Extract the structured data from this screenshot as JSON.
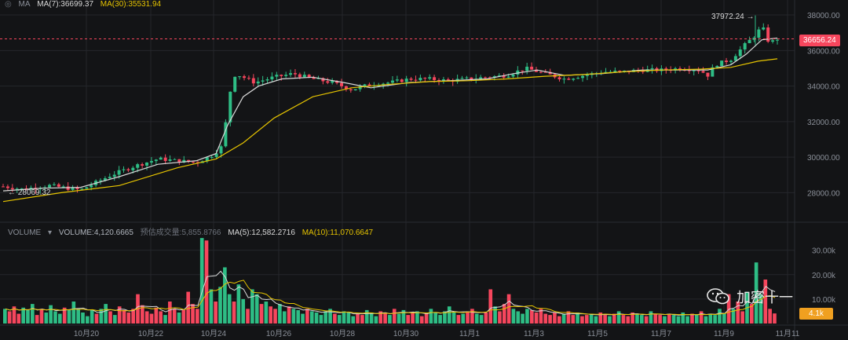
{
  "price_legend": {
    "prefix": "MA",
    "ma7_label": "MA(7):36699.37",
    "ma30_label": "MA(30):35531.94"
  },
  "volume_legend": {
    "title": "VOLUME",
    "volume_label": "VOLUME:4,120.6665",
    "estimate_label": "预估成交量:5,855.8766",
    "ma5_label": "MA(5):12,582.2716",
    "ma10_label": "MA(10):11,070.6647"
  },
  "annotations": {
    "high_label": "37972.24 →",
    "low_label": "← 28069.32",
    "current_price": "36656.24",
    "current_volume": "4.1k"
  },
  "watermark": "加密十一",
  "colors": {
    "up": "#2ebd85",
    "down": "#f6465d",
    "ma7": "#d9d9d9",
    "ma30": "#e6c400",
    "ma10vol": "#e6c400",
    "current_tag": "#f6465d",
    "volume_tag": "#f0a020",
    "background": "#131416",
    "grid": "#24262b"
  },
  "chart_data": [
    {
      "type": "candlestick",
      "title": "",
      "y_ticks": [
        "38000.00",
        "36000.00",
        "34000.00",
        "32000.00",
        "30000.00",
        "28000.00"
      ],
      "ylim": [
        27000,
        38400
      ],
      "x_ticks": [
        "10月20",
        "10月22",
        "10月24",
        "10月26",
        "10月28",
        "10月30",
        "11月1",
        "11月3",
        "11月5",
        "11月7",
        "11月9",
        "11月11"
      ],
      "price_path": [
        [
          0,
          28350
        ],
        [
          5,
          28200
        ],
        [
          12,
          28400
        ],
        [
          20,
          28150
        ],
        [
          28,
          29000
        ],
        [
          34,
          29500
        ],
        [
          40,
          29900
        ],
        [
          45,
          29800
        ],
        [
          50,
          29700
        ],
        [
          54,
          30100
        ],
        [
          57,
          30700
        ],
        [
          58,
          33200
        ],
        [
          60,
          34700
        ],
        [
          65,
          34200
        ],
        [
          70,
          34500
        ],
        [
          75,
          34700
        ],
        [
          80,
          34400
        ],
        [
          85,
          34200
        ],
        [
          90,
          33800
        ],
        [
          95,
          34100
        ],
        [
          100,
          34200
        ],
        [
          105,
          34400
        ],
        [
          110,
          34400
        ],
        [
          115,
          34300
        ],
        [
          120,
          34400
        ],
        [
          125,
          34500
        ],
        [
          130,
          34600
        ],
        [
          135,
          35000
        ],
        [
          140,
          34700
        ],
        [
          145,
          34400
        ],
        [
          150,
          34600
        ],
        [
          155,
          34800
        ],
        [
          160,
          34800
        ],
        [
          165,
          34900
        ],
        [
          170,
          34900
        ],
        [
          175,
          35000
        ],
        [
          180,
          34900
        ],
        [
          182,
          34600
        ],
        [
          184,
          35200
        ],
        [
          188,
          35500
        ],
        [
          192,
          36400
        ],
        [
          195,
          37000
        ],
        [
          196,
          37600
        ],
        [
          197,
          36600
        ],
        [
          199,
          36500
        ],
        [
          200,
          36656
        ]
      ],
      "ma7_path": [
        [
          0,
          28100
        ],
        [
          10,
          28250
        ],
        [
          20,
          28300
        ],
        [
          30,
          28900
        ],
        [
          40,
          29600
        ],
        [
          50,
          29800
        ],
        [
          55,
          30200
        ],
        [
          58,
          31800
        ],
        [
          62,
          33400
        ],
        [
          66,
          34000
        ],
        [
          72,
          34400
        ],
        [
          80,
          34500
        ],
        [
          88,
          34200
        ],
        [
          95,
          33900
        ],
        [
          105,
          34200
        ],
        [
          115,
          34300
        ],
        [
          125,
          34400
        ],
        [
          132,
          34700
        ],
        [
          138,
          34900
        ],
        [
          145,
          34600
        ],
        [
          155,
          34700
        ],
        [
          165,
          34900
        ],
        [
          175,
          34900
        ],
        [
          182,
          34900
        ],
        [
          188,
          35200
        ],
        [
          192,
          35800
        ],
        [
          196,
          36600
        ],
        [
          200,
          36699
        ]
      ],
      "ma30_path": [
        [
          0,
          27500
        ],
        [
          15,
          28000
        ],
        [
          30,
          28400
        ],
        [
          45,
          29400
        ],
        [
          55,
          29900
        ],
        [
          62,
          30800
        ],
        [
          70,
          32200
        ],
        [
          80,
          33400
        ],
        [
          90,
          33900
        ],
        [
          100,
          34100
        ],
        [
          110,
          34250
        ],
        [
          120,
          34300
        ],
        [
          130,
          34400
        ],
        [
          140,
          34550
        ],
        [
          150,
          34650
        ],
        [
          160,
          34800
        ],
        [
          170,
          34900
        ],
        [
          180,
          34950
        ],
        [
          188,
          35050
        ],
        [
          195,
          35400
        ],
        [
          200,
          35532
        ]
      ],
      "high": 37972.24,
      "low": 28069.32,
      "current": 36656.24
    },
    {
      "type": "bar",
      "title": "VOLUME",
      "y_ticks": [
        "30.00k",
        "20.00k",
        "10.00k"
      ],
      "ylim": [
        0,
        36000
      ],
      "series": [
        {
          "name": "VOLUME",
          "values": [
            6000,
            5000,
            7000,
            4000,
            6500,
            5500,
            8000,
            3500,
            6000,
            4500,
            7500,
            5000,
            4000,
            6500,
            5500,
            9000,
            6000,
            4500,
            3000,
            5500,
            4000,
            6000,
            8000,
            5000,
            3500,
            7000,
            5500,
            4500,
            6000,
            12000,
            7500,
            5000,
            4000,
            6500,
            5000,
            3500,
            9000,
            6000,
            4500,
            5500,
            13000,
            8000,
            6000,
            35000,
            34000,
            14000,
            9000,
            15000,
            23000,
            12000,
            9000,
            16000,
            10000,
            6000,
            14000,
            12000,
            8000,
            9000,
            7000,
            6000,
            8000,
            5000,
            7000,
            6000,
            5500,
            4000,
            6000,
            5000,
            4500,
            3500,
            5000,
            6000,
            4000,
            3500,
            5000,
            4500,
            3000,
            4000,
            3500,
            5500,
            4500,
            3000,
            5000,
            4000,
            3500,
            6000,
            4000,
            5500,
            3500,
            4500,
            5000,
            3000,
            4000,
            6000,
            4500,
            3500,
            5000,
            7000,
            4500,
            3500,
            4000,
            5000,
            6000,
            4000,
            3500,
            4500,
            14000,
            7000,
            5000,
            8000,
            12000,
            6000,
            5000,
            4000,
            6000,
            5500,
            4500,
            6000,
            4000,
            3500,
            4500,
            3000,
            4000,
            5000,
            3500,
            4500,
            3000,
            3500,
            4000,
            3000,
            4500,
            3500,
            3000,
            4000,
            5000,
            3500,
            3000,
            4500,
            4000,
            3500,
            3000,
            5000,
            4000,
            3500,
            3000,
            4000,
            3500,
            3000,
            4500,
            3000,
            4000,
            3500,
            5000,
            3000,
            4000,
            3500,
            6000,
            4000,
            12000,
            6000,
            9000,
            5000,
            13000,
            8000,
            25000,
            12000,
            18000,
            6000,
            4120
          ]
        },
        {
          "name": "MA(5)",
          "values": []
        },
        {
          "name": "MA(10)",
          "values": []
        }
      ]
    }
  ]
}
